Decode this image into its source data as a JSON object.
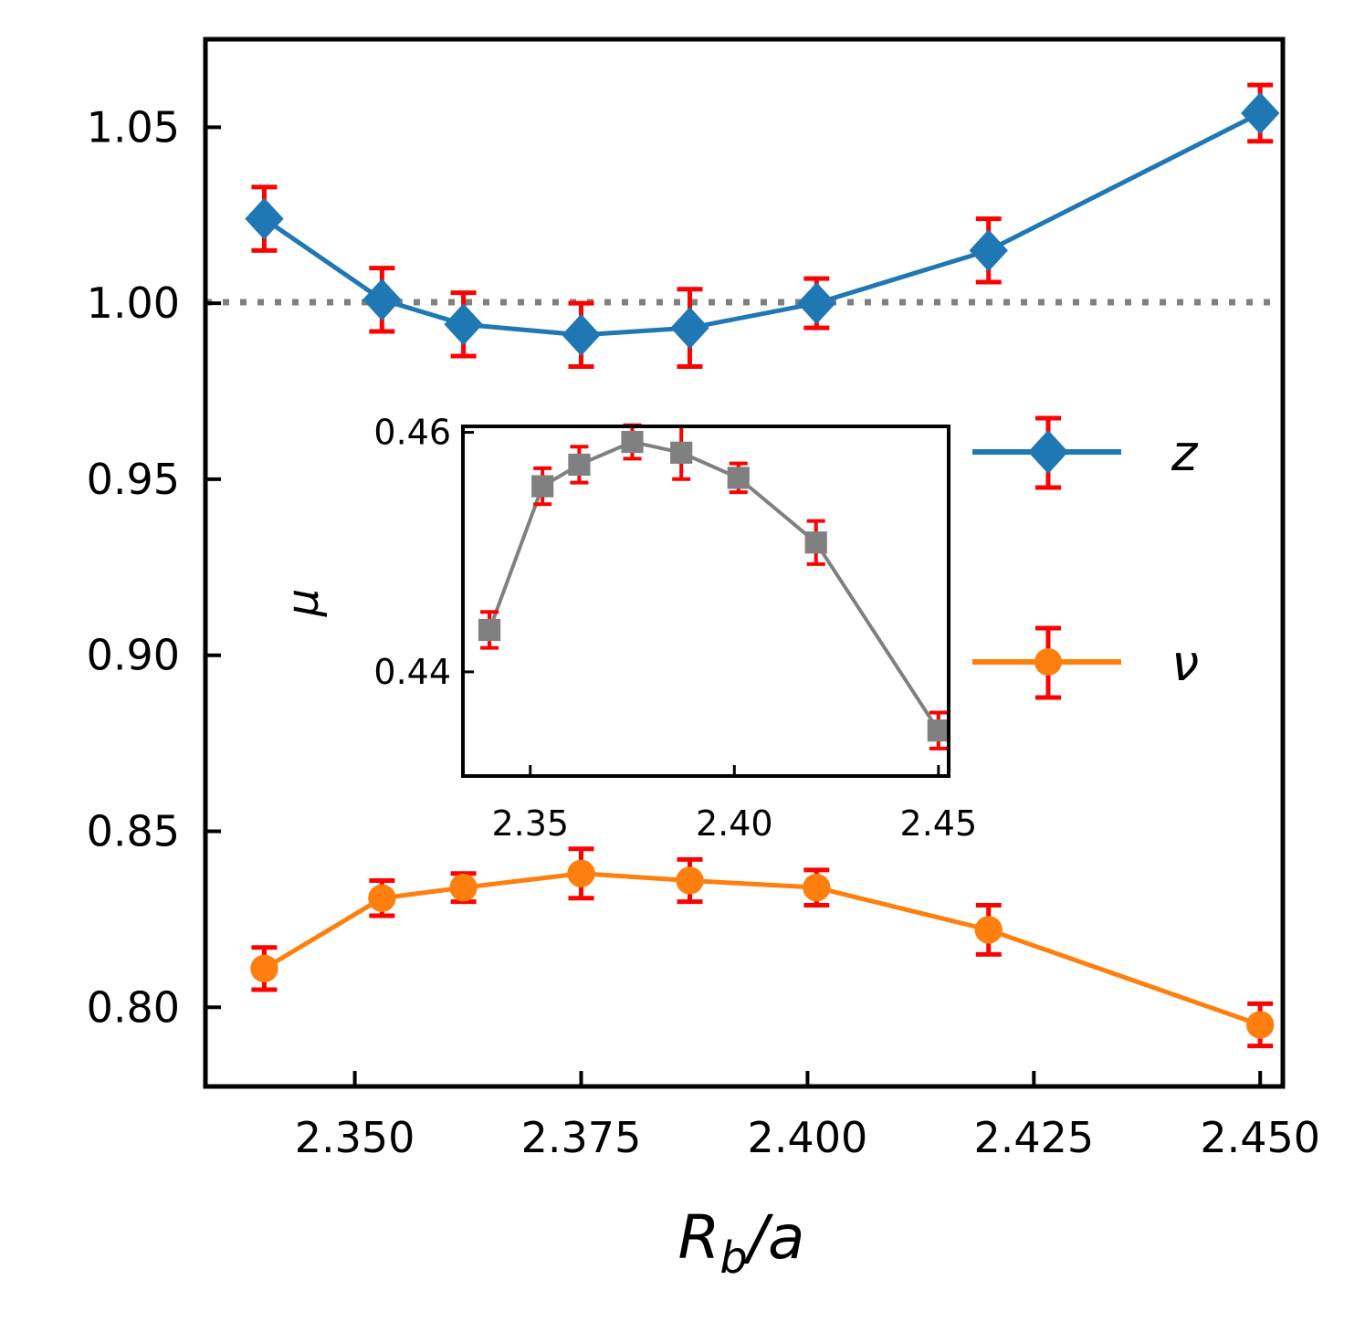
{
  "chart_data": [
    {
      "type": "line",
      "xlabel": "R_b/a",
      "ylabel": "",
      "xlim": [
        2.3335,
        2.4525
      ],
      "ylim": [
        0.7775,
        1.075
      ],
      "xticks": [
        2.35,
        2.375,
        2.4,
        2.425,
        2.45
      ],
      "xtick_labels": [
        "2.350",
        "2.375",
        "2.400",
        "2.425",
        "2.450"
      ],
      "yticks": [
        0.8,
        0.85,
        0.9,
        0.95,
        1.0,
        1.05
      ],
      "ytick_labels": [
        "0.80",
        "0.85",
        "0.90",
        "0.95",
        "1.00",
        "1.05"
      ],
      "reference_line": {
        "y": 1.0,
        "style": "dotted",
        "color": "#808080"
      },
      "grid": false,
      "legend_position": "right-center",
      "errorbar_color": "#ff0000",
      "series": [
        {
          "name": "z",
          "color": "#1f77b4",
          "marker": "diamond",
          "x": [
            2.34,
            2.353,
            2.362,
            2.375,
            2.387,
            2.401,
            2.42,
            2.45
          ],
          "y": [
            1.024,
            1.001,
            0.994,
            0.991,
            0.993,
            1.0,
            1.015,
            1.054
          ],
          "yerr": [
            0.009,
            0.009,
            0.009,
            0.009,
            0.011,
            0.007,
            0.009,
            0.008
          ]
        },
        {
          "name": "ν",
          "color": "#ff7f0e",
          "marker": "circle",
          "x": [
            2.34,
            2.353,
            2.362,
            2.375,
            2.387,
            2.401,
            2.42,
            2.45
          ],
          "y": [
            0.811,
            0.831,
            0.834,
            0.838,
            0.836,
            0.834,
            0.822,
            0.795
          ],
          "yerr": [
            0.006,
            0.005,
            0.004,
            0.007,
            0.006,
            0.005,
            0.007,
            0.006
          ]
        }
      ]
    },
    {
      "type": "line",
      "inset": true,
      "xlabel": "",
      "ylabel": "μ",
      "xlim": [
        2.3335,
        2.4525
      ],
      "ylim": [
        0.4313,
        0.4605
      ],
      "xticks": [
        2.35,
        2.4,
        2.45
      ],
      "xtick_labels": [
        "2.35",
        "2.40",
        "2.45"
      ],
      "yticks": [
        0.44,
        0.46
      ],
      "ytick_labels": [
        "0.44",
        "0.46"
      ],
      "grid": false,
      "series": [
        {
          "color": "#808080",
          "marker": "square",
          "x": [
            2.34,
            2.353,
            2.362,
            2.375,
            2.387,
            2.401,
            2.42,
            2.45
          ],
          "y": [
            0.4435,
            0.4555,
            0.4573,
            0.4592,
            0.4583,
            0.4562,
            0.4508,
            0.4351
          ],
          "yerr": [
            0.0015,
            0.0015,
            0.0015,
            0.0014,
            0.0022,
            0.0012,
            0.0018,
            0.0015
          ]
        }
      ]
    }
  ]
}
